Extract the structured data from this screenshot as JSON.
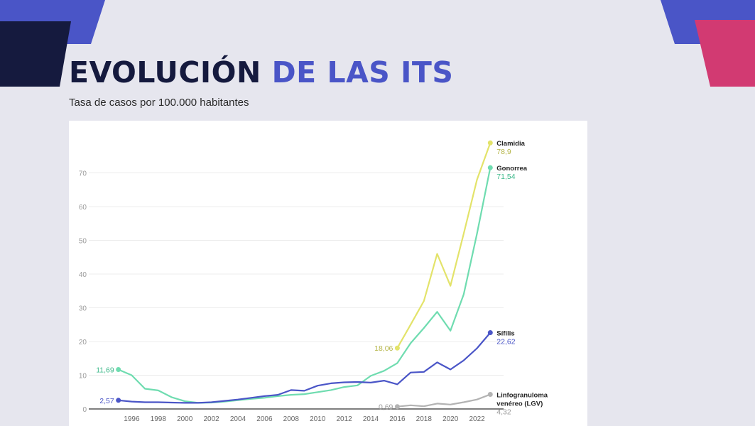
{
  "title_part1": "EVOLUCIÓN",
  "title_part2": "DE LAS ITS",
  "subtitle": "Tasa de casos por 100.000 habitantes",
  "colors": {
    "clamidia": "#e3e36a",
    "gonorrea": "#6fdcb0",
    "sifilis": "#4a55c7",
    "lgv": "#b3b3b3",
    "title_dark": "#151a3e",
    "title_accent": "#4a55c7"
  },
  "chart_data": {
    "type": "line",
    "title": "",
    "xlabel": "",
    "ylabel": "",
    "ylim": [
      0,
      80
    ],
    "xlim": [
      1994,
      2024
    ],
    "grid": true,
    "y_ticks": [
      "0",
      "10",
      "20",
      "30",
      "40",
      "50",
      "60",
      "70"
    ],
    "x_ticks": [
      "1996",
      "1998",
      "2000",
      "2002",
      "2004",
      "2006",
      "2008",
      "2010",
      "2012",
      "2014",
      "2016",
      "2018",
      "2020",
      "2022"
    ],
    "series": [
      {
        "key": "clamidia",
        "name": "Clamidia",
        "label_lines": [
          "Clamidia"
        ],
        "end_value_label": "78,9",
        "start_value_label": "18,06",
        "x": [
          2016,
          2017,
          2018,
          2019,
          2020,
          2021,
          2022,
          2023
        ],
        "y": [
          18.06,
          25,
          32,
          46,
          36.5,
          52,
          68,
          78.9
        ]
      },
      {
        "key": "gonorrea",
        "name": "Gonorrea",
        "label_lines": [
          "Gonorrea"
        ],
        "end_value_label": "71,54",
        "start_value_label": "11,69",
        "x": [
          1995,
          1996,
          1997,
          1998,
          1999,
          2000,
          2001,
          2002,
          2003,
          2004,
          2005,
          2006,
          2007,
          2008,
          2009,
          2010,
          2011,
          2012,
          2013,
          2014,
          2015,
          2016,
          2017,
          2018,
          2019,
          2020,
          2021,
          2022,
          2023
        ],
        "y": [
          11.69,
          10,
          6,
          5.5,
          3.5,
          2.3,
          1.8,
          1.9,
          2.2,
          2.6,
          3,
          3.3,
          3.8,
          4.2,
          4.4,
          5,
          5.6,
          6.5,
          7,
          9.8,
          11.3,
          13.6,
          19.5,
          24,
          28.8,
          23.2,
          34,
          52,
          71.54
        ]
      },
      {
        "key": "sifilis",
        "name": "Sífilis",
        "label_lines": [
          "Sífilis"
        ],
        "end_value_label": "22,62",
        "start_value_label": "2,57",
        "x": [
          1995,
          1996,
          1997,
          1998,
          1999,
          2000,
          2001,
          2002,
          2003,
          2004,
          2005,
          2006,
          2007,
          2008,
          2009,
          2010,
          2011,
          2012,
          2013,
          2014,
          2015,
          2016,
          2017,
          2018,
          2019,
          2020,
          2021,
          2022,
          2023
        ],
        "y": [
          2.57,
          2.2,
          2,
          2,
          1.9,
          1.8,
          1.8,
          2,
          2.4,
          2.8,
          3.3,
          3.8,
          4.2,
          5.6,
          5.4,
          6.9,
          7.6,
          7.9,
          8,
          7.8,
          8.4,
          7.3,
          10.8,
          11,
          13.8,
          11.7,
          14.4,
          18,
          22.62
        ]
      },
      {
        "key": "lgv",
        "name": "Linfogranuloma venéreo (LGV)",
        "label_lines": [
          "Linfogranuloma",
          "venéreo (LGV)"
        ],
        "end_value_label": "4,32",
        "start_value_label": "0,69",
        "x": [
          2016,
          2017,
          2018,
          2019,
          2020,
          2021,
          2022,
          2023
        ],
        "y": [
          0.69,
          1.1,
          0.8,
          1.6,
          1.3,
          2,
          2.8,
          4.32
        ]
      }
    ]
  }
}
